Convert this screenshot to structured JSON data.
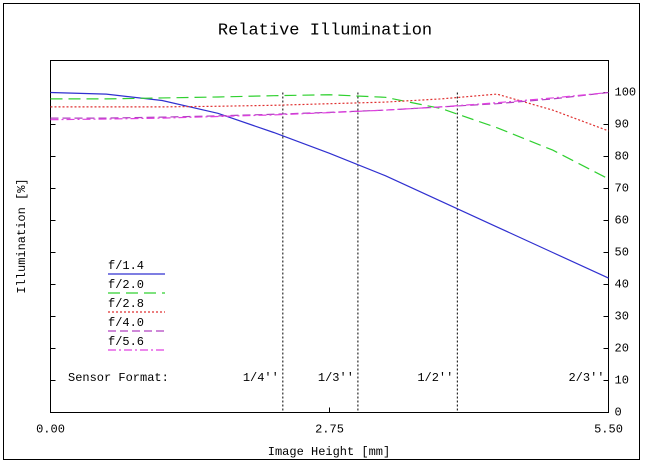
{
  "chart_data": {
    "type": "line",
    "title": "Relative Illumination",
    "x_label": "Image Height [mm]",
    "y_label": "Illumination [%]",
    "x": [
      0,
      0.55,
      1.1,
      1.65,
      2.2,
      2.75,
      3.3,
      3.85,
      4.4,
      4.95,
      5.5
    ],
    "series": [
      {
        "name": "f/1.4",
        "color": "#3030d0",
        "dash": "",
        "values": [
          100,
          99.5,
          97.5,
          93.5,
          87.5,
          81,
          74,
          66,
          58,
          50,
          42
        ]
      },
      {
        "name": "f/2.0",
        "color": "#30d030",
        "dash": "12 6",
        "values": [
          98,
          98,
          98.3,
          98.6,
          99,
          99.3,
          98.5,
          95,
          89,
          82,
          73
        ]
      },
      {
        "name": "f/2.8",
        "color": "#e03030",
        "dash": "2 2",
        "values": [
          95.5,
          95.5,
          95.5,
          95.7,
          96,
          96.5,
          97,
          98,
          99.5,
          94.5,
          88
        ]
      },
      {
        "name": "f/4.0",
        "color": "#b040c0",
        "dash": "8 4",
        "values": [
          92,
          92,
          92.3,
          92.7,
          93.2,
          93.8,
          94.5,
          95.5,
          96.5,
          98,
          100
        ]
      },
      {
        "name": "f/5.6",
        "color": "#e040e0",
        "dash": "8 3 2 3",
        "values": [
          91.5,
          91.7,
          92,
          92.5,
          93,
          93.7,
          94.5,
          95.5,
          96.8,
          98.3,
          100
        ]
      }
    ],
    "xlim": [
      0,
      5.5
    ],
    "xticks": [
      {
        "value": 0,
        "label": "0.00"
      },
      {
        "value": 2.75,
        "label": "2.75"
      },
      {
        "value": 5.5,
        "label": "5.50"
      }
    ],
    "ylim": [
      0,
      110
    ],
    "yticks": [
      0,
      10,
      20,
      30,
      40,
      50,
      60,
      70,
      80,
      90,
      100
    ],
    "sensor_format": {
      "label": "Sensor Format:",
      "formats": [
        {
          "label": "1/4''",
          "x": 2.29
        },
        {
          "label": "1/3''",
          "x": 3.03
        },
        {
          "label": "1/2''",
          "x": 4.01
        },
        {
          "label": "2/3''",
          "x": 5.5
        }
      ]
    }
  }
}
